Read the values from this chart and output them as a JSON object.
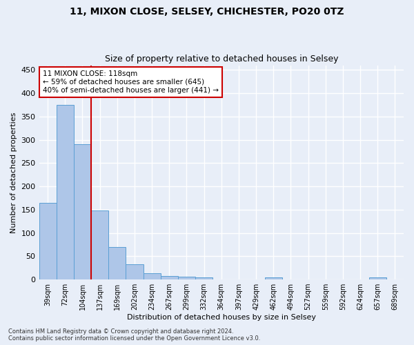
{
  "title1": "11, MIXON CLOSE, SELSEY, CHICHESTER, PO20 0TZ",
  "title2": "Size of property relative to detached houses in Selsey",
  "xlabel": "Distribution of detached houses by size in Selsey",
  "ylabel": "Number of detached properties",
  "bar_labels": [
    "39sqm",
    "72sqm",
    "104sqm",
    "137sqm",
    "169sqm",
    "202sqm",
    "234sqm",
    "267sqm",
    "299sqm",
    "332sqm",
    "364sqm",
    "397sqm",
    "429sqm",
    "462sqm",
    "494sqm",
    "527sqm",
    "559sqm",
    "592sqm",
    "624sqm",
    "657sqm",
    "689sqm"
  ],
  "bar_values": [
    165,
    375,
    290,
    148,
    70,
    33,
    14,
    7,
    6,
    5,
    0,
    0,
    0,
    4,
    0,
    0,
    0,
    0,
    0,
    4,
    0
  ],
  "bar_color": "#aec6e8",
  "bar_edge_color": "#5a9fd4",
  "background_color": "#e8eef8",
  "grid_color": "#ffffff",
  "annotation_text_line1": "11 MIXON CLOSE: 118sqm",
  "annotation_text_line2": "← 59% of detached houses are smaller (645)",
  "annotation_text_line3": "40% of semi-detached houses are larger (441) →",
  "annotation_box_color": "#ffffff",
  "annotation_border_color": "#cc0000",
  "red_line_x": 2.5,
  "ylim": [
    0,
    460
  ],
  "yticks": [
    0,
    50,
    100,
    150,
    200,
    250,
    300,
    350,
    400,
    450
  ],
  "footnote1": "Contains HM Land Registry data © Crown copyright and database right 2024.",
  "footnote2": "Contains public sector information licensed under the Open Government Licence v3.0."
}
